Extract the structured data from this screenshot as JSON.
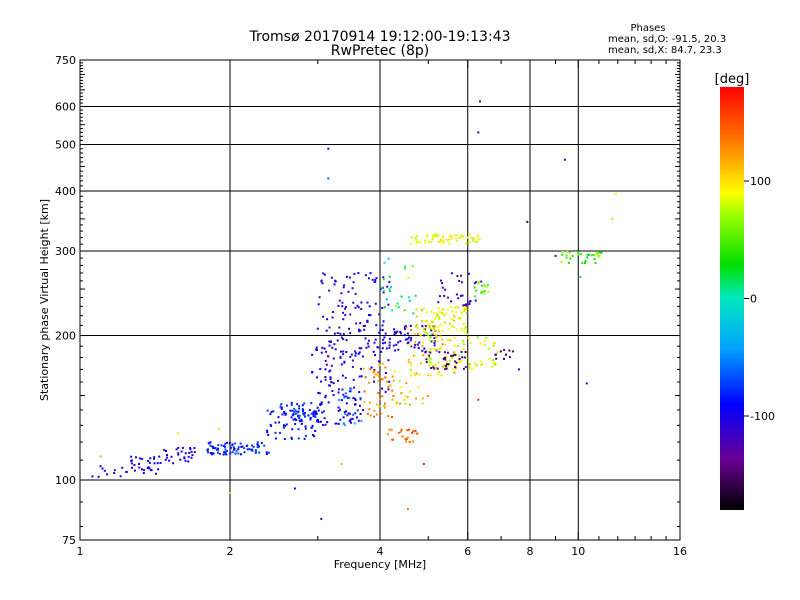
{
  "chart_data": {
    "type": "scatter",
    "title": "Tromsø 20170914 19:12:00-19:13:43",
    "subtitle": "RwPretec (8p)",
    "xlabel": "Frequency [MHz]",
    "ylabel": "Stationary phase Virtual Height [km]",
    "x_scale": "log",
    "y_scale": "log",
    "xlim": [
      1,
      16
    ],
    "ylim": [
      75,
      750
    ],
    "x_ticks": [
      1,
      2,
      4,
      6,
      8,
      10,
      16
    ],
    "x_minor_ticks": [
      3,
      5,
      7,
      9,
      11,
      12,
      13,
      14,
      15
    ],
    "y_ticks": [
      75,
      100,
      200,
      300,
      400,
      500,
      600,
      750
    ],
    "x_grid": [
      2,
      4,
      6,
      8,
      10
    ],
    "y_grid": [
      100,
      200,
      300,
      400,
      500,
      600
    ],
    "info": {
      "heading": "Phases",
      "line1": "mean, sd,O: -91.5, 20.3",
      "line2": "mean, sd,X: 84.7, 23.3"
    },
    "colorbar": {
      "label": "[deg]",
      "min": -180,
      "max": 180,
      "ticks": [
        100,
        0,
        -100
      ],
      "colormap": "rainbow"
    },
    "clusters": [
      {
        "x": [
          1.05,
          1.25
        ],
        "y": [
          101,
          107
        ],
        "n": 12,
        "phase": -110,
        "spread": 12
      },
      {
        "x": [
          1.25,
          1.45
        ],
        "y": [
          103,
          112
        ],
        "n": 30,
        "phase": -100,
        "spread": 14
      },
      {
        "x": [
          1.45,
          1.7
        ],
        "y": [
          108,
          118
        ],
        "n": 30,
        "phase": -100,
        "spread": 16
      },
      {
        "x": [
          1.8,
          2.4
        ],
        "y": [
          113,
          120
        ],
        "n": 80,
        "phase": -80,
        "spread": 16
      },
      {
        "x": [
          2.35,
          3.0
        ],
        "y": [
          120,
          140
        ],
        "n": 60,
        "phase": -90,
        "spread": 18
      },
      {
        "x": [
          2.5,
          3.1
        ],
        "y": [
          132,
          145
        ],
        "n": 50,
        "phase": -80,
        "spread": 16
      },
      {
        "x": [
          2.9,
          3.7
        ],
        "y": [
          130,
          190
        ],
        "n": 80,
        "phase": -100,
        "spread": 14
      },
      {
        "x": [
          3.0,
          3.6
        ],
        "y": [
          150,
          270
        ],
        "n": 90,
        "phase": -110,
        "spread": 12
      },
      {
        "x": [
          3.6,
          4.2
        ],
        "y": [
          150,
          270
        ],
        "n": 70,
        "phase": -100,
        "spread": 14
      },
      {
        "x": [
          3.3,
          3.7
        ],
        "y": [
          130,
          155
        ],
        "n": 20,
        "phase": -60,
        "spread": 30
      },
      {
        "x": [
          3.7,
          4.3
        ],
        "y": [
          135,
          175
        ],
        "n": 45,
        "phase": 130,
        "spread": 20
      },
      {
        "x": [
          4.1,
          4.8
        ],
        "y": [
          120,
          128
        ],
        "n": 25,
        "phase": 140,
        "spread": 15
      },
      {
        "x": [
          4.2,
          5.0
        ],
        "y": [
          140,
          170
        ],
        "n": 25,
        "phase": 100,
        "spread": 30
      },
      {
        "x": [
          4.0,
          5.2
        ],
        "y": [
          185,
          210
        ],
        "n": 60,
        "phase": -100,
        "spread": 14
      },
      {
        "x": [
          4.5,
          5.7
        ],
        "y": [
          165,
          215
        ],
        "n": 50,
        "phase": 110,
        "spread": 25
      },
      {
        "x": [
          4.7,
          6.0
        ],
        "y": [
          200,
          230
        ],
        "n": 80,
        "phase": 90,
        "spread": 25
      },
      {
        "x": [
          5.0,
          6.9
        ],
        "y": [
          170,
          200
        ],
        "n": 70,
        "phase": 80,
        "spread": 20
      },
      {
        "x": [
          4.9,
          6.0
        ],
        "y": [
          170,
          185
        ],
        "n": 35,
        "phase": -150,
        "spread": 14
      },
      {
        "x": [
          4.6,
          6.4
        ],
        "y": [
          310,
          325
        ],
        "n": 60,
        "phase": 90,
        "spread": 15
      },
      {
        "x": [
          5.2,
          6.4
        ],
        "y": [
          230,
          270
        ],
        "n": 30,
        "phase": -120,
        "spread": 20
      },
      {
        "x": [
          6.2,
          6.8
        ],
        "y": [
          240,
          260
        ],
        "n": 15,
        "phase": 60,
        "spread": 20
      },
      {
        "x": [
          4.0,
          4.8
        ],
        "y": [
          220,
          290
        ],
        "n": 25,
        "phase": 30,
        "spread": 60
      },
      {
        "x": [
          9.2,
          11.2
        ],
        "y": [
          283,
          300
        ],
        "n": 30,
        "phase": 50,
        "spread": 30
      },
      {
        "x": [
          6.8,
          7.4
        ],
        "y": [
          175,
          190
        ],
        "n": 10,
        "phase": -150,
        "spread": 10
      }
    ],
    "outliers": [
      {
        "x": 6.35,
        "y": 615,
        "phase": -110
      },
      {
        "x": 6.3,
        "y": 530,
        "phase": -110
      },
      {
        "x": 3.15,
        "y": 490,
        "phase": -110
      },
      {
        "x": 9.4,
        "y": 465,
        "phase": -100
      },
      {
        "x": 3.15,
        "y": 425,
        "phase": -60
      },
      {
        "x": 11.9,
        "y": 395,
        "phase": 100
      },
      {
        "x": 7.9,
        "y": 345,
        "phase": -150
      },
      {
        "x": 11.7,
        "y": 350,
        "phase": 110
      },
      {
        "x": 9.0,
        "y": 293,
        "phase": -120
      },
      {
        "x": 10.1,
        "y": 265,
        "phase": -20
      },
      {
        "x": 10.4,
        "y": 159,
        "phase": -100
      },
      {
        "x": 6.3,
        "y": 147,
        "phase": 160
      },
      {
        "x": 4.55,
        "y": 87,
        "phase": 140
      },
      {
        "x": 3.05,
        "y": 83,
        "phase": -110
      },
      {
        "x": 2.7,
        "y": 96,
        "phase": -100
      },
      {
        "x": 2.0,
        "y": 94,
        "phase": 110
      },
      {
        "x": 1.57,
        "y": 125,
        "phase": 100
      },
      {
        "x": 1.9,
        "y": 128,
        "phase": 100
      },
      {
        "x": 4.9,
        "y": 108,
        "phase": 170
      },
      {
        "x": 7.6,
        "y": 170,
        "phase": -100
      },
      {
        "x": 3.35,
        "y": 108,
        "phase": 60
      },
      {
        "x": 1.1,
        "y": 112,
        "phase": 120
      }
    ]
  }
}
